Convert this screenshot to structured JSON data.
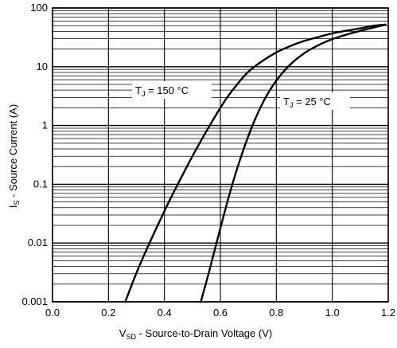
{
  "chart_data": {
    "type": "line",
    "title": "",
    "xlabel": {
      "main": "V",
      "sub": "SD",
      "rest": " - Source-to-Drain Voltage (V)"
    },
    "ylabel": {
      "main": "I",
      "sub": "S",
      "rest": " - Source Current (A)"
    },
    "xlim": [
      0.0,
      1.2
    ],
    "ylim": [
      0.001,
      100
    ],
    "yscale": "log",
    "grid": true,
    "x_ticks": [
      {
        "v": 0.0,
        "label": "0.0"
      },
      {
        "v": 0.2,
        "label": "0.2"
      },
      {
        "v": 0.4,
        "label": "0.4"
      },
      {
        "v": 0.6,
        "label": "0.6"
      },
      {
        "v": 0.8,
        "label": "0.8"
      },
      {
        "v": 1.0,
        "label": "1.0"
      },
      {
        "v": 1.2,
        "label": "1.2"
      }
    ],
    "y_ticks": [
      {
        "v": 0.001,
        "label": "0.001"
      },
      {
        "v": 0.01,
        "label": "0.01"
      },
      {
        "v": 0.1,
        "label": "0.1"
      },
      {
        "v": 1,
        "label": "1"
      },
      {
        "v": 10,
        "label": "10"
      },
      {
        "v": 100,
        "label": "100"
      }
    ],
    "series": [
      {
        "label": {
          "main": "T",
          "sub": "J",
          "rest": " = 150 °C"
        },
        "x": [
          0.26,
          0.3,
          0.34,
          0.38,
          0.42,
          0.46,
          0.5,
          0.54,
          0.58,
          0.62,
          0.66,
          0.7,
          0.75,
          0.8,
          0.85,
          0.9,
          0.95,
          1.0,
          1.05,
          1.1,
          1.15,
          1.19
        ],
        "y": [
          0.001,
          0.0031,
          0.0085,
          0.022,
          0.055,
          0.13,
          0.3,
          0.66,
          1.4,
          2.8,
          5.0,
          8.2,
          12.5,
          17.5,
          22.5,
          27.5,
          32,
          37,
          41,
          45,
          50,
          52
        ]
      },
      {
        "label": {
          "main": "T",
          "sub": "J",
          "rest": " = 25 °C"
        },
        "x": [
          0.53,
          0.56,
          0.6,
          0.64,
          0.68,
          0.72,
          0.76,
          0.8,
          0.84,
          0.88,
          0.92,
          0.96,
          1.0,
          1.04,
          1.08,
          1.12,
          1.16,
          1.19
        ],
        "y": [
          0.001,
          0.0033,
          0.018,
          0.09,
          0.36,
          1.15,
          2.9,
          5.8,
          9.8,
          14.5,
          19.5,
          24.5,
          29.5,
          34,
          38.5,
          43,
          48,
          52
        ]
      }
    ]
  }
}
